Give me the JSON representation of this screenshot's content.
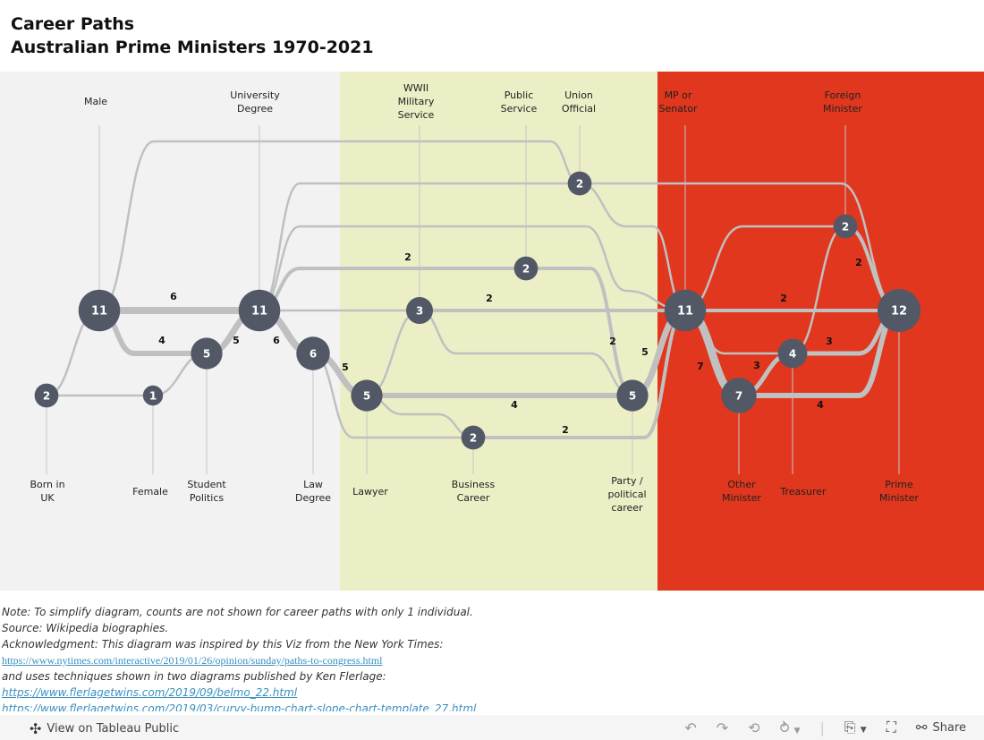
{
  "title": {
    "line1": "Career Paths",
    "line2": "Australian Prime Ministers 1970-2021"
  },
  "colors": {
    "band_personal": "#f2f2f2",
    "band_career": "#ecefc6",
    "band_politics": "#e0371e",
    "node": "#525866",
    "link": "#c0c0c0"
  },
  "nodes": [
    {
      "id": "male",
      "label": "Male",
      "count": 11
    },
    {
      "id": "uni",
      "label": "University Degree",
      "count": 11
    },
    {
      "id": "bornuk",
      "label": "Born in UK",
      "count": 2
    },
    {
      "id": "female",
      "label": "Female",
      "count": 1
    },
    {
      "id": "student",
      "label": "Student Politics",
      "count": 5
    },
    {
      "id": "law",
      "label": "Law Degree",
      "count": 6
    },
    {
      "id": "lawyer",
      "label": "Lawyer",
      "count": 5
    },
    {
      "id": "wwii",
      "label": "WWII Military Service",
      "count": 3
    },
    {
      "id": "pubserv",
      "label": "Public Service",
      "count": 2
    },
    {
      "id": "union",
      "label": "Union Official",
      "count": 2
    },
    {
      "id": "business",
      "label": "Business Career",
      "count": 2
    },
    {
      "id": "party",
      "label": "Party / political career",
      "count": 5
    },
    {
      "id": "mp",
      "label": "MP or Senator",
      "count": 11
    },
    {
      "id": "foreign",
      "label": "Foreign Minister",
      "count": 2
    },
    {
      "id": "treasurer",
      "label": "Treasurer",
      "count": 4
    },
    {
      "id": "other",
      "label": "Other Minister",
      "count": 7
    },
    {
      "id": "pm",
      "label": "Prime Minister",
      "count": 12
    }
  ],
  "links": [
    {
      "from": "bornuk",
      "to": "male",
      "count": 1
    },
    {
      "from": "bornuk",
      "to": "female",
      "count": 1
    },
    {
      "from": "female",
      "to": "student",
      "count": 1
    },
    {
      "from": "male",
      "to": "uni",
      "count": 6
    },
    {
      "from": "male",
      "to": "student",
      "count": 4
    },
    {
      "from": "student",
      "to": "uni",
      "count": 5
    },
    {
      "from": "male",
      "to": "union",
      "count": 1
    },
    {
      "from": "union",
      "to": "mp",
      "count": 1
    },
    {
      "from": "uni",
      "to": "pm",
      "count": 1
    },
    {
      "from": "uni",
      "to": "mp",
      "count": 1
    },
    {
      "from": "uni",
      "to": "pubserv",
      "count": 2
    },
    {
      "from": "pubserv",
      "to": "party",
      "count": 2
    },
    {
      "from": "uni",
      "to": "wwii",
      "count": 1
    },
    {
      "from": "wwii",
      "to": "mp",
      "count": 2
    },
    {
      "from": "wwii",
      "to": "party",
      "count": 1
    },
    {
      "from": "uni",
      "to": "law",
      "count": 6
    },
    {
      "from": "law",
      "to": "lawyer",
      "count": 5
    },
    {
      "from": "law",
      "to": "business",
      "count": 1
    },
    {
      "from": "lawyer",
      "to": "wwii",
      "count": 1
    },
    {
      "from": "lawyer",
      "to": "party",
      "count": 4
    },
    {
      "from": "lawyer",
      "to": "business",
      "count": 1
    },
    {
      "from": "business",
      "to": "mp",
      "count": 2
    },
    {
      "from": "party",
      "to": "mp",
      "count": 5
    },
    {
      "from": "mp",
      "to": "pm",
      "count": 2
    },
    {
      "from": "mp",
      "to": "other",
      "count": 7
    },
    {
      "from": "mp",
      "to": "foreign",
      "count": 1
    },
    {
      "from": "mp",
      "to": "treasurer",
      "count": 1
    },
    {
      "from": "other",
      "to": "treasurer",
      "count": 3
    },
    {
      "from": "other",
      "to": "pm",
      "count": 4
    },
    {
      "from": "treasurer",
      "to": "pm",
      "count": 3
    },
    {
      "from": "treasurer",
      "to": "foreign",
      "count": 1
    },
    {
      "from": "foreign",
      "to": "pm",
      "count": 2
    }
  ],
  "notes": {
    "note": "Note: To simplify diagram, counts are not shown for career paths with only 1 individual.",
    "source": "Source: Wikipedia biographies.",
    "ack": "Acknowledgment: This diagram was inspired by this Viz from the New York Times:",
    "link1": "https://www.nytimes.com/interactive/2019/01/26/opinion/sunday/paths-to-congress.html",
    "uses": "and uses techniques shown in two diagrams published by Ken Flerlage:",
    "link2": "https://www.flerlagetwins.com/2019/09/belmo_22.html",
    "link3": "https://www.flerlagetwins.com/2019/03/curvy-bump-chart-slope-chart-template_27.html"
  },
  "footer": {
    "view_label": "View on Tableau Public",
    "share_label": "Share",
    "icons": [
      "undo-icon",
      "redo-icon",
      "revert-icon",
      "refresh-icon",
      "download-icon",
      "fullscreen-icon",
      "share-icon"
    ]
  }
}
